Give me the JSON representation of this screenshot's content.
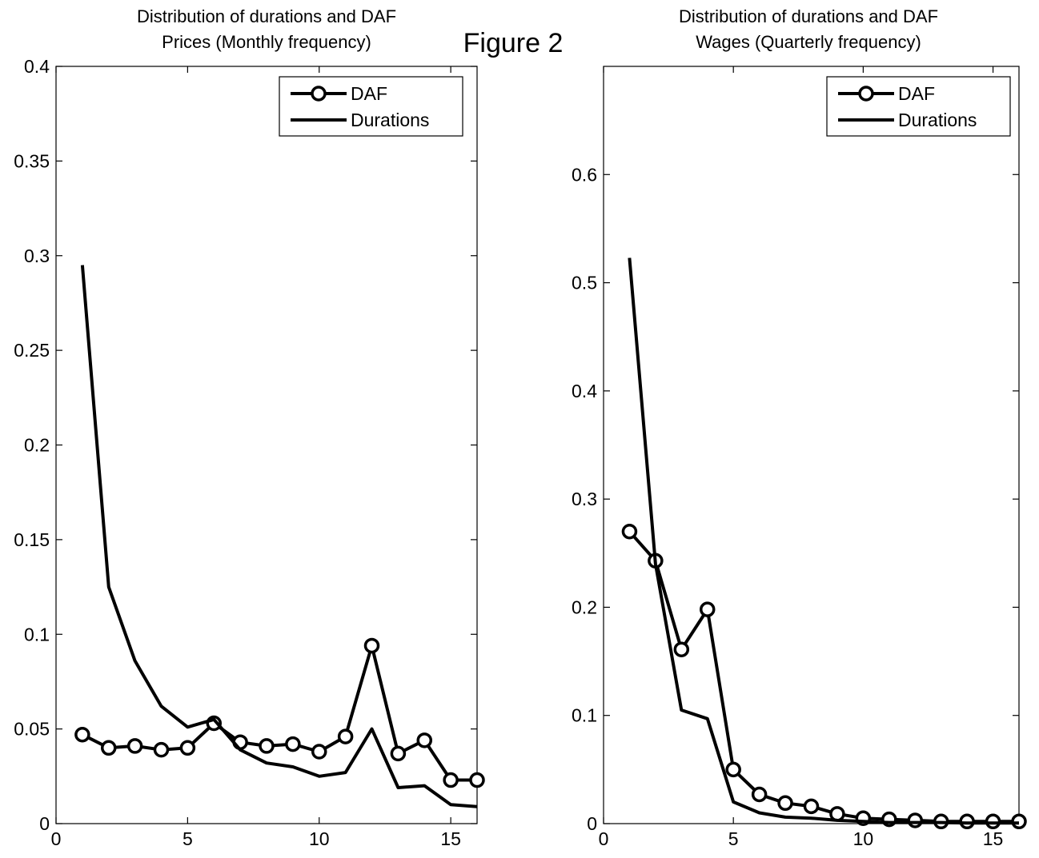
{
  "figure": {
    "label": "Figure 2"
  },
  "chart_data": [
    {
      "type": "line",
      "title_line1": "Distribution of durations and DAF",
      "title_line2": "Prices (Monthly frequency)",
      "xlabel": "",
      "ylabel": "",
      "xlim": [
        0,
        16
      ],
      "ylim": [
        0,
        0.4
      ],
      "xticks": [
        0,
        5,
        10,
        15
      ],
      "xtick_labels": [
        "0",
        "5",
        "10",
        "15"
      ],
      "yticks": [
        0,
        0.05,
        0.1,
        0.15,
        0.2,
        0.25,
        0.3,
        0.35,
        0.4
      ],
      "ytick_labels": [
        "0",
        "0.05",
        "0.1",
        "0.15",
        "0.2",
        "0.25",
        "0.3",
        "0.35",
        "0.4"
      ],
      "grid": false,
      "legend_position": "top-right",
      "x": [
        1,
        2,
        3,
        4,
        5,
        6,
        7,
        8,
        9,
        10,
        11,
        12,
        13,
        14,
        15,
        16
      ],
      "series": [
        {
          "name": "DAF",
          "marker": "circle",
          "values": [
            0.047,
            0.04,
            0.041,
            0.039,
            0.04,
            0.053,
            0.043,
            0.041,
            0.042,
            0.038,
            0.046,
            0.094,
            0.037,
            0.044,
            0.023,
            0.023
          ]
        },
        {
          "name": "Durations",
          "marker": "none",
          "values": [
            0.295,
            0.125,
            0.086,
            0.062,
            0.051,
            0.055,
            0.039,
            0.032,
            0.03,
            0.025,
            0.027,
            0.05,
            0.019,
            0.02,
            0.01,
            0.009
          ]
        }
      ]
    },
    {
      "type": "line",
      "title_line1": "Distribution of durations and DAF",
      "title_line2": "Wages (Quarterly frequency)",
      "xlabel": "",
      "ylabel": "",
      "xlim": [
        0,
        16
      ],
      "ylim": [
        0,
        0.7
      ],
      "xticks": [
        0,
        5,
        10,
        15
      ],
      "xtick_labels": [
        "0",
        "5",
        "10",
        "15"
      ],
      "yticks": [
        0,
        0.1,
        0.2,
        0.3,
        0.4,
        0.5,
        0.6
      ],
      "ytick_labels": [
        "0",
        "0.1",
        "0.2",
        "0.3",
        "0.4",
        "0.5",
        "0.6"
      ],
      "grid": false,
      "legend_position": "top-right",
      "x": [
        1,
        2,
        3,
        4,
        5,
        6,
        7,
        8,
        9,
        10,
        11,
        12,
        13,
        14,
        15,
        16
      ],
      "series": [
        {
          "name": "DAF",
          "marker": "circle",
          "values": [
            0.27,
            0.243,
            0.161,
            0.198,
            0.05,
            0.027,
            0.019,
            0.016,
            0.009,
            0.005,
            0.004,
            0.003,
            0.002,
            0.002,
            0.002,
            0.002
          ]
        },
        {
          "name": "Durations",
          "marker": "none",
          "values": [
            0.523,
            0.24,
            0.105,
            0.097,
            0.02,
            0.01,
            0.006,
            0.005,
            0.003,
            0.002,
            0.001,
            0.001,
            0.001,
            0.0005,
            0.0005,
            0.0005
          ]
        }
      ]
    }
  ]
}
